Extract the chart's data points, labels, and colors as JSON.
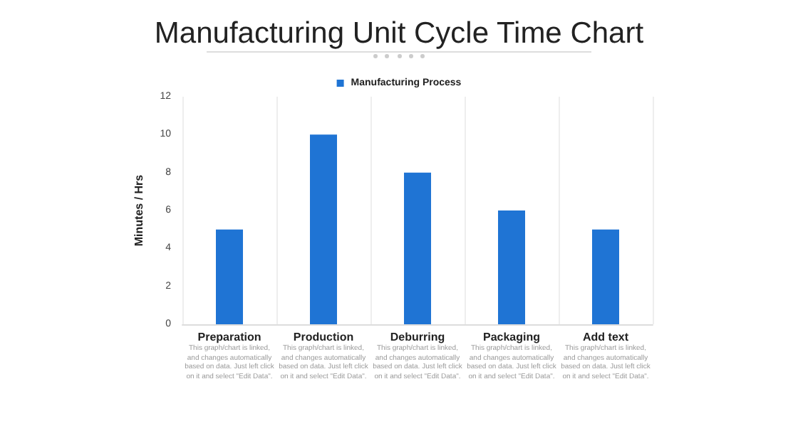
{
  "chart_data": {
    "type": "bar",
    "title": "Manufacturing Unit Cycle Time Chart",
    "categories": [
      "Preparation",
      "Production",
      "Deburring",
      "Packaging",
      "Add text"
    ],
    "series": [
      {
        "name": "Manufacturing Process",
        "color": "#1f74d4",
        "values": [
          5,
          10,
          8,
          6,
          5
        ]
      }
    ],
    "ylabel": "Minutes / Hrs",
    "ylim": [
      0,
      12
    ],
    "yticks": [
      0,
      2,
      4,
      6,
      8,
      10,
      12
    ],
    "grid": "x",
    "legend": "top",
    "annotations": [
      "This graph/chart is linked, and changes automatically based on data. Just left click on it and select \"Edit Data\".",
      "This graph/chart is linked, and changes automatically based on data. Just left click on it and select \"Edit Data\".",
      "This graph/chart is linked, and changes automatically based on data. Just left click on it and select \"Edit Data\".",
      "This graph/chart is linked, and changes automatically based on data. Just left click on it and select \"Edit Data\".",
      "This graph/chart is linked, and changes automatically based on data. Just left click on it and select \"Edit Data\"."
    ]
  }
}
